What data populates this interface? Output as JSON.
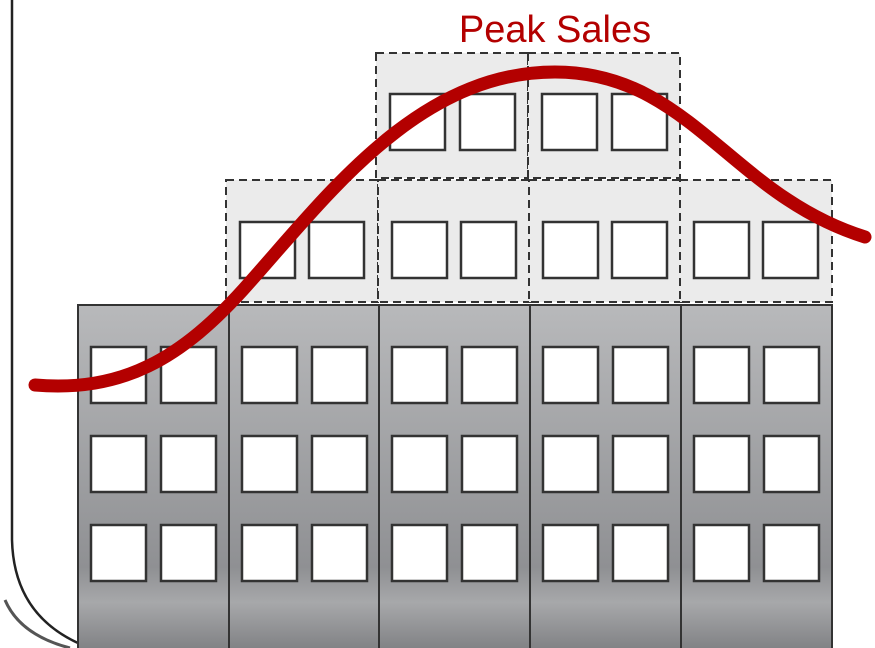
{
  "annotation": {
    "label": "Peak Sales"
  }
}
